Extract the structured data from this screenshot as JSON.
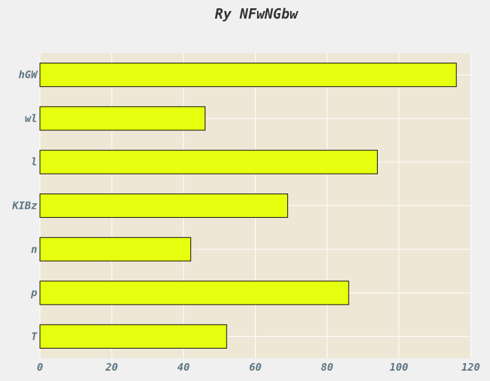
{
  "chart_data": {
    "type": "bar",
    "orientation": "horizontal",
    "title": "Ry NFwNGbw",
    "xlabel": "",
    "ylabel": "",
    "categories": [
      "hGW",
      "wl",
      "l",
      "KIBz",
      "n",
      "p",
      "T"
    ],
    "values": [
      116,
      46,
      94,
      69,
      42,
      86,
      52
    ],
    "xlim": [
      0,
      120
    ],
    "xticks": [
      0,
      20,
      40,
      60,
      80,
      100,
      120
    ],
    "grid": true,
    "legend": "none",
    "colors": {
      "bar_fill": "#e6ff0f",
      "bar_stroke": "#000000",
      "plot_background": "#efe7d6",
      "grid": "#ffffff"
    }
  }
}
